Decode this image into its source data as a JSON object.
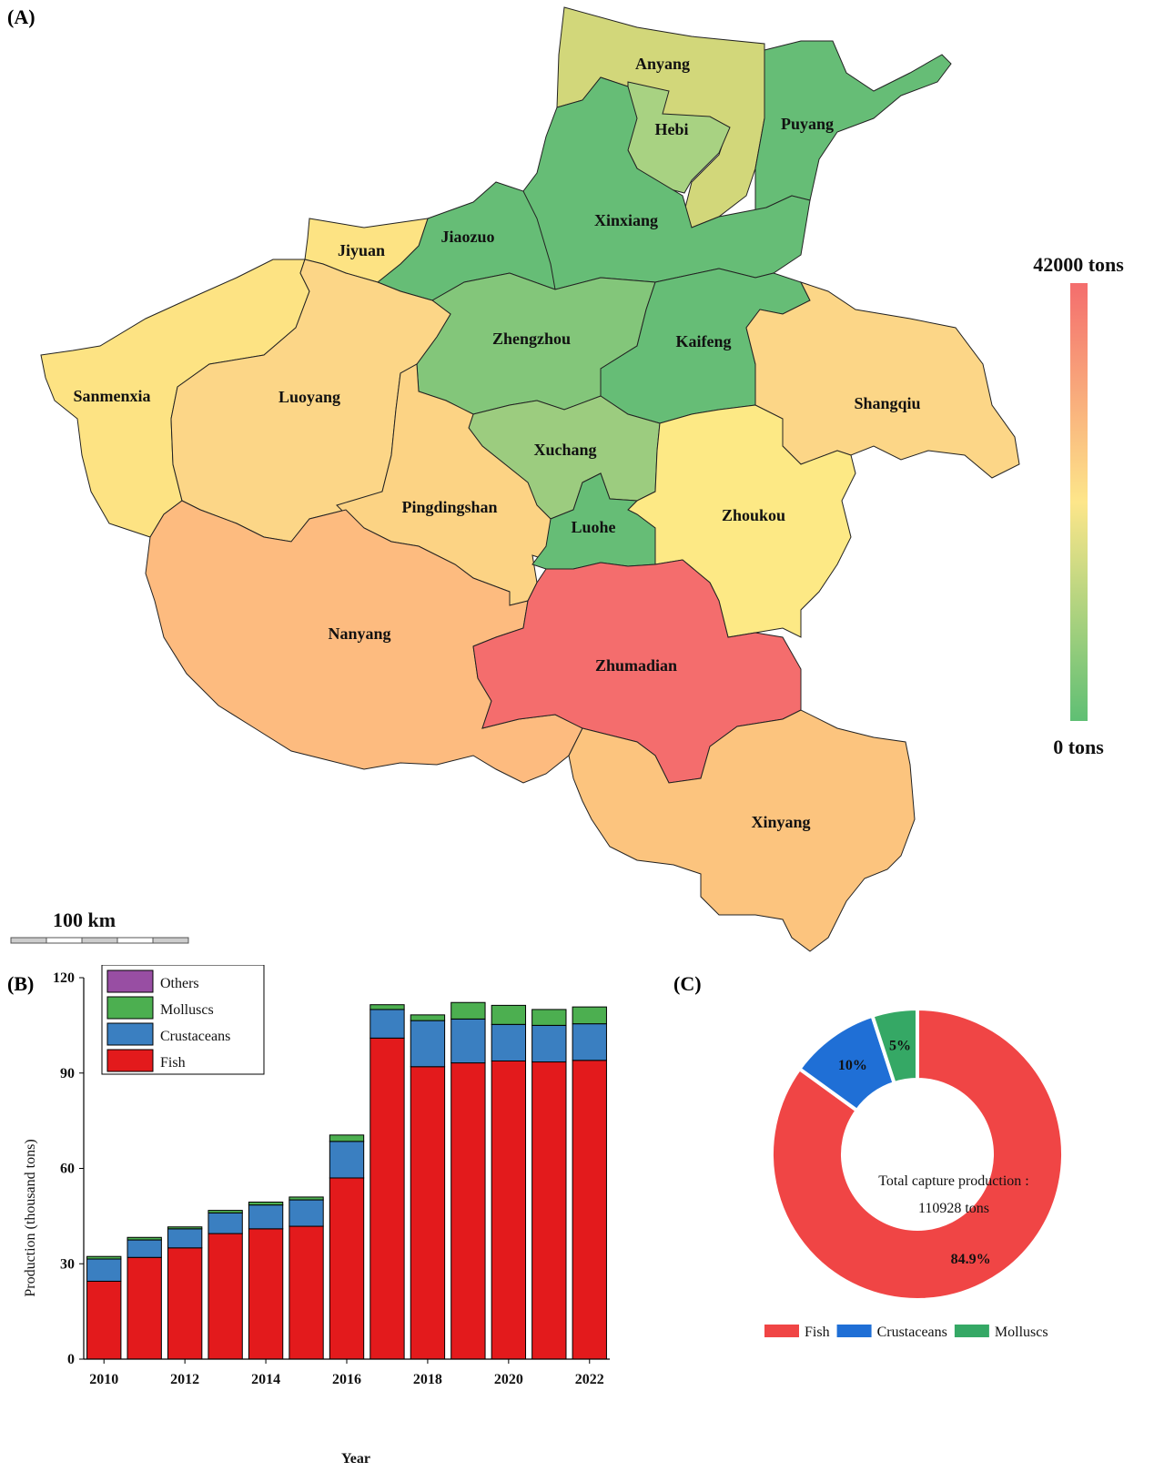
{
  "panels": {
    "a": "(A)",
    "b": "(B)",
    "c": "(C)"
  },
  "colors": {
    "high": "#f46d6d",
    "mid": "#fde68a",
    "low": "#5fbf74"
  },
  "map": {
    "legend_max": "42000 tons",
    "legend_min": "0 tons",
    "scale_label": "100 km",
    "regions": [
      {
        "name": "Anyang",
        "color": "#d2d77a"
      },
      {
        "name": "Hebi",
        "color": "#a8d282"
      },
      {
        "name": "Puyang",
        "color": "#66bd76"
      },
      {
        "name": "Xinxiang",
        "color": "#66bd76"
      },
      {
        "name": "Jiaozuo",
        "color": "#66bd76"
      },
      {
        "name": "Jiyuan",
        "color": "#fde383"
      },
      {
        "name": "Zhengzhou",
        "color": "#83c67a"
      },
      {
        "name": "Kaifeng",
        "color": "#66bd76"
      },
      {
        "name": "Sanmenxia",
        "color": "#fde383"
      },
      {
        "name": "Luoyang",
        "color": "#fcd687"
      },
      {
        "name": "Shangqiu",
        "color": "#fcd687"
      },
      {
        "name": "Xuchang",
        "color": "#9ccc7f"
      },
      {
        "name": "Pingdingshan",
        "color": "#fcd384"
      },
      {
        "name": "Zhoukou",
        "color": "#fde985"
      },
      {
        "name": "Luohe",
        "color": "#66bd76"
      },
      {
        "name": "Nanyang",
        "color": "#fdbb7f"
      },
      {
        "name": "Zhumadian",
        "color": "#f46d6d"
      },
      {
        "name": "Xinyang",
        "color": "#fcc47e"
      }
    ]
  },
  "chart_data": [
    {
      "type": "bar",
      "stacked": true,
      "ylabel": "Production (thousand tons)",
      "xlabel": "Year",
      "ylim": [
        0,
        120
      ],
      "yticks": [
        0,
        30,
        60,
        90,
        120
      ],
      "xticks": [
        "2010",
        "2012",
        "2014",
        "2016",
        "2018",
        "2020",
        "2022"
      ],
      "categories": [
        "2010",
        "2011",
        "2012",
        "2013",
        "2014",
        "2015",
        "2016",
        "2017",
        "2018",
        "2019",
        "2020",
        "2021",
        "2022"
      ],
      "legend_position": "top-left",
      "series": [
        {
          "name": "Fish",
          "color": "#e31a1c",
          "values": [
            24.5,
            32.0,
            35.0,
            39.5,
            41.0,
            41.8,
            57.0,
            101.0,
            92.0,
            93.2,
            93.8,
            93.5,
            94.0
          ]
        },
        {
          "name": "Crustaceans",
          "color": "#3a7fc1",
          "values": [
            7.0,
            5.5,
            6.0,
            6.5,
            7.5,
            8.3,
            11.5,
            9.0,
            14.5,
            13.8,
            11.5,
            11.5,
            11.5
          ]
        },
        {
          "name": "Molluscs",
          "color": "#4caf50",
          "values": [
            0.8,
            0.8,
            0.6,
            0.8,
            0.9,
            0.9,
            2.0,
            1.5,
            1.8,
            5.2,
            6.0,
            5.0,
            5.3
          ]
        },
        {
          "name": "Others",
          "color": "#984ea3",
          "values": [
            0,
            0,
            0,
            0,
            0,
            0,
            0,
            0,
            0,
            0,
            0,
            0,
            0
          ]
        }
      ]
    },
    {
      "type": "pie",
      "donut": true,
      "center_text": [
        "Total  capture production :",
        "110928 tons"
      ],
      "legend_position": "bottom",
      "slices": [
        {
          "name": "Fish",
          "value": 84.9,
          "label": "84.9%",
          "color": "#f04545"
        },
        {
          "name": "Crustaceans",
          "value": 10,
          "label": "10%",
          "color": "#1f6fd6"
        },
        {
          "name": "Molluscs",
          "value": 5,
          "label": "5%",
          "color": "#35a865"
        }
      ]
    }
  ]
}
